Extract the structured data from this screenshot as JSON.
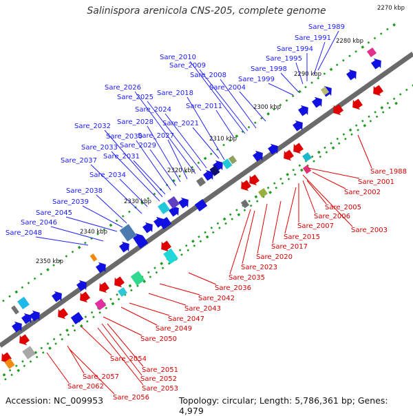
{
  "title": "Salinispora arenicola CNS-205, complete genome",
  "accession": "Accession: NC_009953",
  "summary": "Topology: circular; Length: 5,786,361 bp; Genes: 4,979",
  "colors": {
    "forward": "#1010e0",
    "reverse": "#e00000",
    "backbone": "#808080",
    "tick": "#1f9b1f"
  },
  "kbp_ticks": [
    "2270 kbp",
    "2280 kbp",
    "2290 kbp",
    "2300 kbp",
    "2310 kbp",
    "2320 kbp",
    "2330 kbp",
    "2340 kbp",
    "2350 kbp"
  ],
  "blue_labels": [
    "Sare_1989",
    "Sare_1991",
    "Sare_1994",
    "Sare_1995",
    "Sare_1998",
    "Sare_1999",
    "Sare_2004",
    "Sare_2008",
    "Sare_2009",
    "Sare_2010",
    "Sare_2011",
    "Sare_2018",
    "Sare_2021",
    "Sare_2024",
    "Sare_2025",
    "Sare_2026",
    "Sare_2027",
    "Sare_2028",
    "Sare_2029",
    "Sare_2030",
    "Sare_2031",
    "Sare_2032",
    "Sare_2033",
    "Sare_2034",
    "Sare_2037",
    "Sare_2038",
    "Sare_2039",
    "Sare_2045",
    "Sare_2046",
    "Sare_2048"
  ],
  "red_labels": [
    "Sare_1988",
    "Sare_2001",
    "Sare_2002",
    "Sare_2005",
    "Sare_2006",
    "Sare_2003",
    "Sare_2007",
    "Sare_2015",
    "Sare_2017",
    "Sare_2020",
    "Sare_2023",
    "Sare_2035",
    "Sare_2036",
    "Sare_2042",
    "Sare_2043",
    "Sare_2047",
    "Sare_2049",
    "Sare_2050",
    "Sare_2054",
    "Sare_2051",
    "Sare_2052",
    "Sare_2053",
    "Sare_2057",
    "Sare_2062",
    "Sare_2056"
  ]
}
